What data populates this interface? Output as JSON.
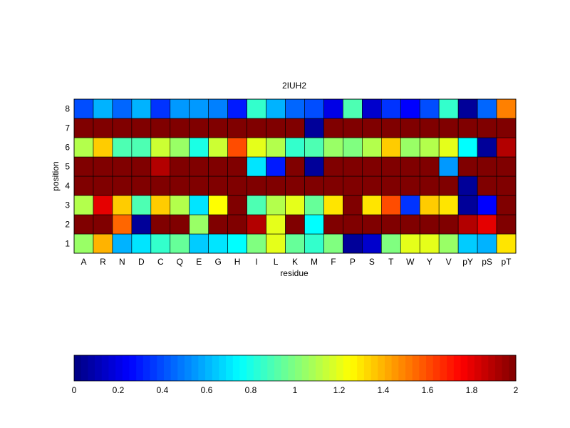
{
  "chart_data": {
    "type": "heatmap",
    "title": "2IUH2",
    "xlabel": "residue",
    "ylabel": "position",
    "x_categories": [
      "A",
      "R",
      "N",
      "D",
      "C",
      "Q",
      "E",
      "G",
      "H",
      "I",
      "L",
      "K",
      "M",
      "F",
      "P",
      "S",
      "T",
      "W",
      "Y",
      "V",
      "pY",
      "pS",
      "pT"
    ],
    "y_categories": [
      "1",
      "2",
      "3",
      "4",
      "5",
      "6",
      "7",
      "8"
    ],
    "value_range": [
      0,
      2
    ],
    "colormap": "jet",
    "rows": [
      {
        "position": "1",
        "values": [
          1.05,
          1.4,
          0.6,
          0.7,
          0.85,
          0.95,
          0.65,
          0.7,
          0.75,
          1.0,
          1.2,
          0.95,
          0.85,
          1.0,
          0.05,
          0.15,
          1.0,
          1.2,
          1.2,
          1.05,
          0.65,
          0.6,
          1.3
        ]
      },
      {
        "position": "2",
        "values": [
          2,
          2,
          1.55,
          0.05,
          2,
          2,
          1.05,
          2,
          2,
          1.9,
          1.2,
          2,
          0.75,
          2,
          2,
          2,
          2,
          2,
          2,
          2,
          1.9,
          1.8,
          2
        ]
      },
      {
        "position": "3",
        "values": [
          1.1,
          1.8,
          1.35,
          0.9,
          1.35,
          1.1,
          0.7,
          1.25,
          2,
          0.9,
          1.1,
          1.2,
          0.95,
          1.3,
          2,
          1.3,
          1.6,
          0.35,
          1.35,
          1.3,
          0.05,
          0.25,
          2
        ]
      },
      {
        "position": "4",
        "values": [
          2,
          2,
          2,
          2,
          2,
          2,
          2,
          2,
          2,
          2,
          2,
          2,
          2,
          2,
          2,
          2,
          2,
          2,
          2,
          2,
          0.05,
          2,
          2
        ]
      },
      {
        "position": "5",
        "values": [
          2,
          2,
          2,
          2,
          1.9,
          2,
          2,
          2,
          2,
          0.7,
          0.3,
          2,
          0.05,
          2,
          2,
          2,
          2,
          2,
          2,
          0.55,
          2,
          2,
          2
        ]
      },
      {
        "position": "6",
        "values": [
          1.1,
          1.35,
          0.9,
          0.9,
          1.15,
          1.05,
          0.8,
          1.15,
          1.6,
          1.2,
          1.1,
          0.85,
          0.9,
          1.05,
          1.0,
          1.1,
          1.35,
          1.05,
          1.1,
          1.2,
          0.75,
          0.05,
          1.9
        ]
      },
      {
        "position": "7",
        "values": [
          2,
          2,
          2,
          2,
          2,
          2,
          2,
          2,
          2,
          2,
          2,
          2,
          0.05,
          2,
          2,
          2,
          2,
          2,
          2,
          2,
          2,
          2,
          2
        ]
      },
      {
        "position": "8",
        "values": [
          0.4,
          0.6,
          0.45,
          0.6,
          0.35,
          0.55,
          0.55,
          0.5,
          0.3,
          0.85,
          0.6,
          0.45,
          0.4,
          0.2,
          0.9,
          0.15,
          0.35,
          0.25,
          0.4,
          0.85,
          0.05,
          0.45,
          1.5
        ]
      }
    ],
    "colorbar": {
      "ticks": [
        "0",
        "0.2",
        "0.4",
        "0.6",
        "0.8",
        "1",
        "1.2",
        "1.4",
        "1.6",
        "1.8",
        "2"
      ],
      "min": 0,
      "max": 2,
      "orientation": "horizontal",
      "placement": "bottom"
    },
    "grid": false,
    "legend": "none"
  }
}
